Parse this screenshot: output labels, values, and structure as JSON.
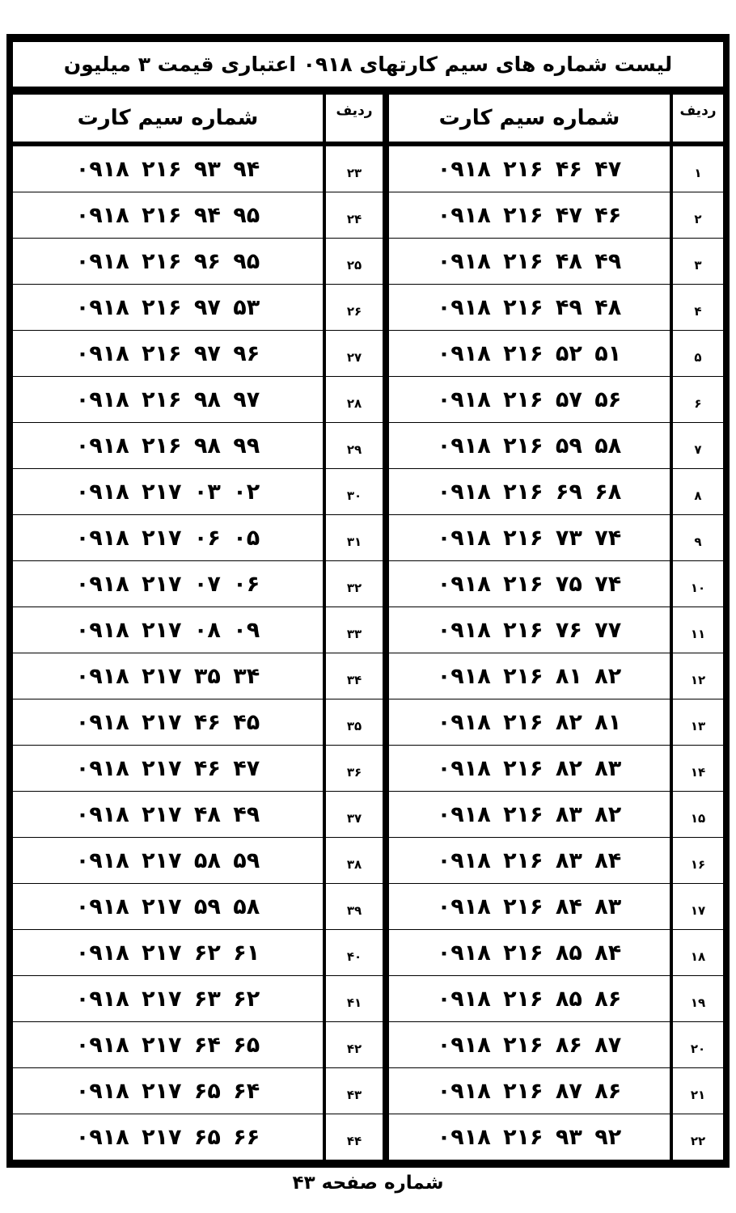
{
  "title": "لیست شماره های سیم کارتهای  ۰۹۱۸  اعتباری  قیمت ۳ میلیون",
  "headers": {
    "number": "شماره سیم کارت",
    "row": "ردیف"
  },
  "right_column": [
    {
      "row": "۱",
      "number": "۰۹۱۸ ۲۱۶  ۴۶ ۴۷"
    },
    {
      "row": "۲",
      "number": "۰۹۱۸ ۲۱۶  ۴۷ ۴۶"
    },
    {
      "row": "۳",
      "number": "۰۹۱۸ ۲۱۶  ۴۸ ۴۹"
    },
    {
      "row": "۴",
      "number": "۰۹۱۸ ۲۱۶  ۴۹ ۴۸"
    },
    {
      "row": "۵",
      "number": "۰۹۱۸ ۲۱۶  ۵۲ ۵۱"
    },
    {
      "row": "۶",
      "number": "۰۹۱۸ ۲۱۶  ۵۷ ۵۶"
    },
    {
      "row": "۷",
      "number": "۰۹۱۸ ۲۱۶  ۵۹ ۵۸"
    },
    {
      "row": "۸",
      "number": "۰۹۱۸ ۲۱۶  ۶۹ ۶۸"
    },
    {
      "row": "۹",
      "number": "۰۹۱۸ ۲۱۶  ۷۳ ۷۴"
    },
    {
      "row": "۱۰",
      "number": "۰۹۱۸ ۲۱۶  ۷۵ ۷۴"
    },
    {
      "row": "۱۱",
      "number": "۰۹۱۸ ۲۱۶  ۷۶ ۷۷"
    },
    {
      "row": "۱۲",
      "number": "۰۹۱۸ ۲۱۶  ۸۱ ۸۲"
    },
    {
      "row": "۱۳",
      "number": "۰۹۱۸ ۲۱۶  ۸۲ ۸۱"
    },
    {
      "row": "۱۴",
      "number": "۰۹۱۸ ۲۱۶  ۸۲ ۸۳"
    },
    {
      "row": "۱۵",
      "number": "۰۹۱۸ ۲۱۶  ۸۳ ۸۲"
    },
    {
      "row": "۱۶",
      "number": "۰۹۱۸ ۲۱۶  ۸۳ ۸۴"
    },
    {
      "row": "۱۷",
      "number": "۰۹۱۸ ۲۱۶  ۸۴ ۸۳"
    },
    {
      "row": "۱۸",
      "number": "۰۹۱۸ ۲۱۶  ۸۵ ۸۴"
    },
    {
      "row": "۱۹",
      "number": "۰۹۱۸ ۲۱۶  ۸۵ ۸۶"
    },
    {
      "row": "۲۰",
      "number": "۰۹۱۸ ۲۱۶  ۸۶ ۸۷"
    },
    {
      "row": "۲۱",
      "number": "۰۹۱۸ ۲۱۶  ۸۷ ۸۶"
    },
    {
      "row": "۲۲",
      "number": "۰۹۱۸ ۲۱۶  ۹۳ ۹۲"
    }
  ],
  "left_column": [
    {
      "row": "۲۳",
      "number": "۰۹۱۸ ۲۱۶  ۹۳ ۹۴"
    },
    {
      "row": "۲۴",
      "number": "۰۹۱۸ ۲۱۶  ۹۴ ۹۵"
    },
    {
      "row": "۲۵",
      "number": "۰۹۱۸ ۲۱۶  ۹۶ ۹۵"
    },
    {
      "row": "۲۶",
      "number": "۰۹۱۸ ۲۱۶  ۹۷ ۵۳"
    },
    {
      "row": "۲۷",
      "number": "۰۹۱۸ ۲۱۶  ۹۷ ۹۶"
    },
    {
      "row": "۲۸",
      "number": "۰۹۱۸ ۲۱۶  ۹۸ ۹۷"
    },
    {
      "row": "۲۹",
      "number": "۰۹۱۸ ۲۱۶  ۹۸ ۹۹"
    },
    {
      "row": "۳۰",
      "number": "۰۹۱۸ ۲۱۷  ۰۳ ۰۲"
    },
    {
      "row": "۳۱",
      "number": "۰۹۱۸ ۲۱۷  ۰۶ ۰۵"
    },
    {
      "row": "۳۲",
      "number": "۰۹۱۸ ۲۱۷  ۰۷ ۰۶"
    },
    {
      "row": "۳۳",
      "number": "۰۹۱۸ ۲۱۷  ۰۸ ۰۹"
    },
    {
      "row": "۳۴",
      "number": "۰۹۱۸ ۲۱۷  ۳۵ ۳۴"
    },
    {
      "row": "۳۵",
      "number": "۰۹۱۸ ۲۱۷  ۴۶ ۴۵"
    },
    {
      "row": "۳۶",
      "number": "۰۹۱۸ ۲۱۷  ۴۶ ۴۷"
    },
    {
      "row": "۳۷",
      "number": "۰۹۱۸ ۲۱۷  ۴۸ ۴۹"
    },
    {
      "row": "۳۸",
      "number": "۰۹۱۸ ۲۱۷  ۵۸ ۵۹"
    },
    {
      "row": "۳۹",
      "number": "۰۹۱۸ ۲۱۷  ۵۹ ۵۸"
    },
    {
      "row": "۴۰",
      "number": "۰۹۱۸ ۲۱۷  ۶۲ ۶۱"
    },
    {
      "row": "۴۱",
      "number": "۰۹۱۸ ۲۱۷  ۶۳ ۶۲"
    },
    {
      "row": "۴۲",
      "number": "۰۹۱۸ ۲۱۷  ۶۴ ۶۵"
    },
    {
      "row": "۴۳",
      "number": "۰۹۱۸ ۲۱۷  ۶۵ ۶۴"
    },
    {
      "row": "۴۴",
      "number": "۰۹۱۸ ۲۱۷  ۶۵ ۶۶"
    }
  ],
  "footer": "شماره صفحه ۴۳"
}
